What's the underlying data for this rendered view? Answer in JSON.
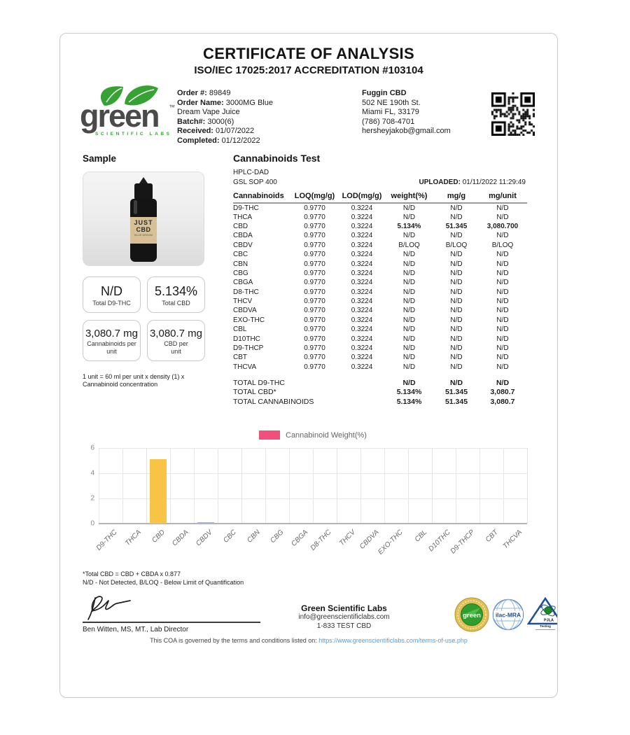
{
  "page": {
    "title": "CERTIFICATE OF ANALYSIS",
    "subtitle": "ISO/IEC 17025:2017 ACCREDITATION #103104"
  },
  "logo": {
    "brand": "green",
    "tm": "™",
    "sub": "SCIENTIFIC LABS",
    "leaf_color": "#36a233",
    "text_color": "#4a4a4a"
  },
  "order": {
    "lines": [
      {
        "label": "Order #:",
        "value": "89849"
      },
      {
        "label": "Order Name:",
        "value": "3000MG Blue Dream Vape Juice"
      },
      {
        "label": "Batch#:",
        "value": "3000(6)"
      },
      {
        "label": "Received:",
        "value": "01/07/2022"
      },
      {
        "label": "Completed:",
        "value": "01/12/2022"
      }
    ]
  },
  "customer": {
    "name": "Fuggin CBD",
    "address1": "502 NE 190th St.",
    "address2": "Miami FL, 33179",
    "phone": "(786) 708-4701",
    "email": "hersheyjakob@gmail.com"
  },
  "qr_icon": "qr-code",
  "sample": {
    "title": "Sample",
    "bottle": {
      "line1": "JUST",
      "line2": "CBD",
      "line3": "BLUE DREAM"
    },
    "results": [
      {
        "value": "N/D",
        "label": "Total D9-THC"
      },
      {
        "value": "5.134%",
        "label": "Total CBD"
      },
      {
        "value": "3,080.7 mg",
        "label": "Cannabinoids per unit"
      },
      {
        "value": "3,080.7 mg",
        "label": "CBD per unit"
      }
    ],
    "unit_note": "1 unit = 60 ml per unit x density (1) x Cannabinoid concentration"
  },
  "cannabinoids_test": {
    "title": "Cannabinoids Test",
    "method1": "HPLC-DAD",
    "method2": "GSL SOP 400",
    "uploaded_label": "UPLOADED:",
    "uploaded_value": "01/11/2022 11:29:49",
    "columns": [
      "Cannabinoids",
      "LOQ(mg/g)",
      "LOD(mg/g)",
      "weight(%)",
      "mg/g",
      "mg/unit"
    ],
    "rows": [
      {
        "name": "D9-THC",
        "loq": "0.9770",
        "lod": "0.3224",
        "weight": "N/D",
        "mgg": "N/D",
        "mgunit": "N/D",
        "bold": false
      },
      {
        "name": "THCA",
        "loq": "0.9770",
        "lod": "0.3224",
        "weight": "N/D",
        "mgg": "N/D",
        "mgunit": "N/D",
        "bold": false
      },
      {
        "name": "CBD",
        "loq": "0.9770",
        "lod": "0.3224",
        "weight": "5.134%",
        "mgg": "51.345",
        "mgunit": "3,080.700",
        "bold": true
      },
      {
        "name": "CBDA",
        "loq": "0.9770",
        "lod": "0.3224",
        "weight": "N/D",
        "mgg": "N/D",
        "mgunit": "N/D",
        "bold": false
      },
      {
        "name": "CBDV",
        "loq": "0.9770",
        "lod": "0.3224",
        "weight": "B/LOQ",
        "mgg": "B/LOQ",
        "mgunit": "B/LOQ",
        "bold": false
      },
      {
        "name": "CBC",
        "loq": "0.9770",
        "lod": "0.3224",
        "weight": "N/D",
        "mgg": "N/D",
        "mgunit": "N/D",
        "bold": false
      },
      {
        "name": "CBN",
        "loq": "0.9770",
        "lod": "0.3224",
        "weight": "N/D",
        "mgg": "N/D",
        "mgunit": "N/D",
        "bold": false
      },
      {
        "name": "CBG",
        "loq": "0.9770",
        "lod": "0.3224",
        "weight": "N/D",
        "mgg": "N/D",
        "mgunit": "N/D",
        "bold": false
      },
      {
        "name": "CBGA",
        "loq": "0.9770",
        "lod": "0.3224",
        "weight": "N/D",
        "mgg": "N/D",
        "mgunit": "N/D",
        "bold": false
      },
      {
        "name": "D8-THC",
        "loq": "0.9770",
        "lod": "0.3224",
        "weight": "N/D",
        "mgg": "N/D",
        "mgunit": "N/D",
        "bold": false
      },
      {
        "name": "THCV",
        "loq": "0.9770",
        "lod": "0.3224",
        "weight": "N/D",
        "mgg": "N/D",
        "mgunit": "N/D",
        "bold": false
      },
      {
        "name": "CBDVA",
        "loq": "0.9770",
        "lod": "0.3224",
        "weight": "N/D",
        "mgg": "N/D",
        "mgunit": "N/D",
        "bold": false
      },
      {
        "name": "EXO-THC",
        "loq": "0.9770",
        "lod": "0.3224",
        "weight": "N/D",
        "mgg": "N/D",
        "mgunit": "N/D",
        "bold": false
      },
      {
        "name": "CBL",
        "loq": "0.9770",
        "lod": "0.3224",
        "weight": "N/D",
        "mgg": "N/D",
        "mgunit": "N/D",
        "bold": false
      },
      {
        "name": "D10THC",
        "loq": "0.9770",
        "lod": "0.3224",
        "weight": "N/D",
        "mgg": "N/D",
        "mgunit": "N/D",
        "bold": false
      },
      {
        "name": "D9-THCP",
        "loq": "0.9770",
        "lod": "0.3224",
        "weight": "N/D",
        "mgg": "N/D",
        "mgunit": "N/D",
        "bold": false
      },
      {
        "name": "CBT",
        "loq": "0.9770",
        "lod": "0.3224",
        "weight": "N/D",
        "mgg": "N/D",
        "mgunit": "N/D",
        "bold": false
      },
      {
        "name": "THCVA",
        "loq": "0.9770",
        "lod": "0.3224",
        "weight": "N/D",
        "mgg": "N/D",
        "mgunit": "N/D",
        "bold": false
      }
    ],
    "totals": [
      {
        "name": "TOTAL D9-THC",
        "weight": "N/D",
        "mgg": "N/D",
        "mgunit": "N/D"
      },
      {
        "name": "TOTAL CBD*",
        "weight": "5.134%",
        "mgg": "51.345",
        "mgunit": "3,080.7"
      },
      {
        "name": "TOTAL CANNABINOIDS",
        "weight": "5.134%",
        "mgg": "51.345",
        "mgunit": "3,080.7"
      }
    ]
  },
  "chart_data": {
    "type": "bar",
    "title": "",
    "xlabel": "",
    "ylabel": "",
    "legend": [
      {
        "label": "Cannabinoid Weight(%)",
        "color": "#f0517b"
      }
    ],
    "legend_position": "top",
    "categories": [
      "D9-THC",
      "THCA",
      "CBD",
      "CBDA",
      "CBDV",
      "CBC",
      "CBN",
      "CBG",
      "CBGA",
      "D8-THC",
      "THCV",
      "CBDVA",
      "EXO-THC",
      "CBL",
      "D10THC",
      "D9-THCP",
      "CBT",
      "THCVA"
    ],
    "values": [
      0,
      0,
      5.134,
      0,
      0.06,
      0,
      0,
      0,
      0,
      0,
      0,
      0,
      0,
      0,
      0,
      0,
      0,
      0
    ],
    "bar_colors": [
      "",
      "",
      "#f7c445",
      "",
      "#aab2e0",
      "",
      "",
      "",
      "",
      "",
      "",
      "",
      "",
      "",
      "",
      "",
      "",
      ""
    ],
    "ylim": [
      0,
      6
    ],
    "yticks": [
      0,
      2,
      4,
      6
    ],
    "grid": true
  },
  "footer": {
    "note1": "*Total CBD = CBD + CBDA x 0.877",
    "note2": "N/D - Not Detected, B/LOQ - Below Limit of Quantification",
    "signature_icon": "signature-scribble",
    "signatory": "Ben Witten, MS, MT., Lab Director",
    "lab_name": "Green Scientific Labs",
    "lab_email": "info@greenscientificlabs.com",
    "lab_phone": "1-833 TEST CBD",
    "badges": {
      "seal": "green",
      "ilac": "ilac-MRA",
      "pjla1": "PJLA",
      "pjla2": "Testing"
    },
    "disclaimer_prefix": "This COA is governed by the terms and conditions listed on: ",
    "disclaimer_url": "https://www.greenscientificlabs.com/terms-of-use.php"
  }
}
